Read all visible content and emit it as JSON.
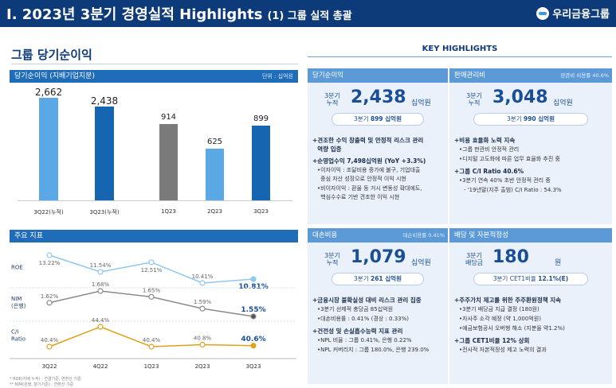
{
  "header": {
    "title": "I. 2023년 3분기 경영실적 Highlights",
    "subtitle": "(1) 그룹 실적 총괄",
    "logo_text": "우리금융그룹"
  },
  "section_title": "그룹 당기순이익",
  "key_highlights_title": "KEY HIGHLIGHTS",
  "net_income": {
    "bar_label": "당기순이익 (지배기업지분)",
    "unit_label": "단위 : 십억원",
    "chart_data": [
      {
        "type": "bar",
        "categories": [
          "3Q22(누적)",
          "3Q23(누적)"
        ],
        "values": [
          2662,
          2438
        ],
        "value_labels": [
          "2,662",
          "2,438"
        ],
        "colors": [
          "#5aa9e6",
          "#1565b0"
        ]
      },
      {
        "type": "bar",
        "categories": [
          "1Q23",
          "2Q23",
          "3Q23"
        ],
        "values": [
          914,
          625,
          899
        ],
        "value_labels": [
          "914",
          "625",
          "899"
        ],
        "colors": [
          "#7a7a7a",
          "#5aa9e6",
          "#1565b0"
        ]
      }
    ]
  },
  "key_indicators": {
    "bar_label": "주요 지표",
    "rows": [
      {
        "name": "ROE",
        "values": [
          13.22,
          11.54,
          12.51,
          10.41,
          10.81
        ],
        "labels": [
          "13.22%",
          "11.54%",
          "12.51%",
          "10.41%",
          "10.81%"
        ],
        "color": "#8ec8ef"
      },
      {
        "name": "NIM\n(은행)",
        "values": [
          1.62,
          1.68,
          1.65,
          1.59,
          1.55
        ],
        "labels": [
          "1.62%",
          "1.68%",
          "1.65%",
          "1.59%",
          "1.55%"
        ],
        "color": "#8a8a8a"
      },
      {
        "name": "C/I\nRatio",
        "values": [
          40.4,
          44.4,
          40.4,
          40.8,
          40.6
        ],
        "labels": [
          "40.4%",
          "44.4%",
          "40.4%",
          "40.8%",
          "40.6%"
        ],
        "color": "#e0a11b"
      }
    ],
    "quarters": [
      "3Q22",
      "4Q22",
      "1Q23",
      "2Q23",
      "3Q23"
    ],
    "footnotes": [
      "* ROE(지배 누적) : 연결기준, 연환산 기준",
      "** NIM(은행, 분기기준) : 연환산 기준"
    ]
  },
  "cards": {
    "net_income": {
      "title": "당기순이익",
      "period": "3분기\n누적",
      "value": "2,438",
      "unit": "십억원",
      "pill_prefix": "3분기",
      "pill_value": "899 십억원",
      "bullets": [
        {
          "level": 1,
          "text": "견조한 수익 창출력 및 안정적 리스크 관리\n역량 입증"
        },
        {
          "level": 1,
          "text": "순영업수익 7,498십억원 (YoY +3.3%)"
        },
        {
          "level": 2,
          "text": "이자이익 : 조달비용 증가에 불구, 기업대출\n중심 자산 성장으로 안정적 이익 시현"
        },
        {
          "level": 2,
          "text": "비이자이익 : 환율 등 거시 변동성 확대에도,\n핵심수수료 기반 견조한 이익 시현"
        }
      ]
    },
    "sga": {
      "title": "판매관리비",
      "right_note": "판관비 비용률 40.6%",
      "period": "3분기\n누적",
      "value": "3,048",
      "unit": "십억원",
      "pill_prefix": "3분기",
      "pill_value": "990 십억원",
      "bullets": [
        {
          "level": 1,
          "text": "비용 효율화 노력 지속"
        },
        {
          "level": 2,
          "text": "그룹 판관비 안정적 관리"
        },
        {
          "level": 2,
          "text": "디지털 고도화에 따른 업무 효율화 추진 중"
        },
        {
          "level": 1,
          "text": "그룹 C/I Ratio 40.6%"
        },
        {
          "level": 2,
          "text": "3분기 연속 40% 초반 안정적 관리 중"
        },
        {
          "level": 3,
          "text": "- '19년말(지주 출범) C/I Ratio : 54.3%"
        }
      ]
    },
    "credit_cost": {
      "title": "대손비용",
      "right_note": "대손비용률 0.41%",
      "period": "3분기\n누적",
      "value": "1,079",
      "unit": "십억원",
      "pill_prefix": "3분기",
      "pill_value": "261 십억원",
      "bullets": [
        {
          "level": 1,
          "text": "금융시장 불확실성 대비 리스크 관리 집중"
        },
        {
          "level": 2,
          "text": "3분기 선제적 충당금 85십억원"
        },
        {
          "level": 2,
          "text": "대손비용률 : 0.41% (경상 : 0.33%)"
        },
        {
          "level": 1,
          "text": "건전성 및 손실흡수능력 지표 관리"
        },
        {
          "level": 2,
          "text": "NPL 비율 : 그룹 0.41%, 은행 0.22%"
        },
        {
          "level": 2,
          "text": "NPL 커버리지 : 그룹 180.0%, 은행 239.0%"
        }
      ]
    },
    "dividend": {
      "title": "배당 및 자본적정성",
      "period": "3분기\n배당금",
      "value": "180",
      "unit": "원",
      "pill_prefix": "3분기 CET1비율",
      "pill_value": "12.1%(E)",
      "bullets": [
        {
          "level": 1,
          "text": "주주가치 제고를 위한 주주환원정책 지속"
        },
        {
          "level": 2,
          "text": "3분기 배당금 지급 결정 (180원)"
        },
        {
          "level": 2,
          "text": "자사주 소각 예정 (약 1,000억원)"
        },
        {
          "level": 2,
          "text": "예금보험공사 오버행 해소 (지분율 약1.2%)"
        },
        {
          "level": 1,
          "text": "그룹 CET1비율 12% 상회"
        },
        {
          "level": 2,
          "text": "전사적 자본적정성 제고 노력의 결과"
        }
      ]
    }
  }
}
